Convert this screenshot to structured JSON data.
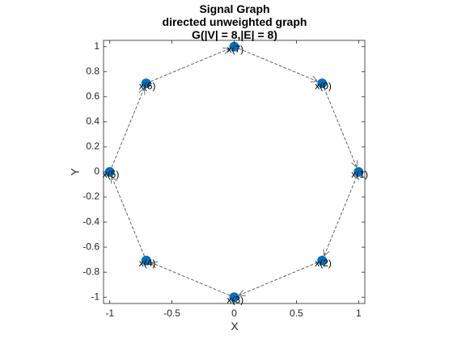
{
  "chart_data": {
    "type": "scatter",
    "subtype": "directed graph",
    "title": [
      "Signal Graph",
      "directed unweighted graph",
      "G(|V| = 8,|E| = 8)"
    ],
    "xlabel": "X",
    "ylabel": "Y",
    "xlim": [
      -1.05,
      1.05
    ],
    "ylim": [
      -1.05,
      1.05
    ],
    "xticks": [
      -1,
      -0.5,
      0,
      0.5,
      1
    ],
    "xtick_labels": [
      "-1",
      "-0.5",
      "0",
      "0.5",
      "1"
    ],
    "yticks": [
      -1,
      -0.8,
      -0.6,
      -0.4,
      -0.2,
      0,
      0.2,
      0.4,
      0.6,
      0.8,
      1
    ],
    "ytick_labels": [
      "-1",
      "-0.8",
      "-0.6",
      "-0.4",
      "-0.2",
      "0",
      "0.2",
      "0.4",
      "0.6",
      "0.8",
      "1"
    ],
    "grid": false,
    "node_color": "#0072bd",
    "edge_color": "#555555",
    "nodes": [
      {
        "id": 0,
        "label": "x(0)",
        "x": 0.7071,
        "y": 0.7071
      },
      {
        "id": 1,
        "label": "x(1)",
        "x": 1.0,
        "y": 0.0
      },
      {
        "id": 2,
        "label": "x(2)",
        "x": 0.7071,
        "y": -0.7071
      },
      {
        "id": 3,
        "label": "x(3)",
        "x": 0.0,
        "y": -1.0
      },
      {
        "id": 4,
        "label": "x(4)",
        "x": -0.7071,
        "y": -0.7071
      },
      {
        "id": 5,
        "label": "x(5)",
        "x": -1.0,
        "y": 0.0
      },
      {
        "id": 6,
        "label": "x(6)",
        "x": -0.7071,
        "y": 0.7071
      },
      {
        "id": 7,
        "label": "x(7)",
        "x": 0.0,
        "y": 1.0
      }
    ],
    "edges": [
      {
        "from": 0,
        "to": 1
      },
      {
        "from": 1,
        "to": 2
      },
      {
        "from": 2,
        "to": 3
      },
      {
        "from": 3,
        "to": 4
      },
      {
        "from": 4,
        "to": 5
      },
      {
        "from": 5,
        "to": 6
      },
      {
        "from": 6,
        "to": 7
      },
      {
        "from": 7,
        "to": 0
      }
    ]
  }
}
